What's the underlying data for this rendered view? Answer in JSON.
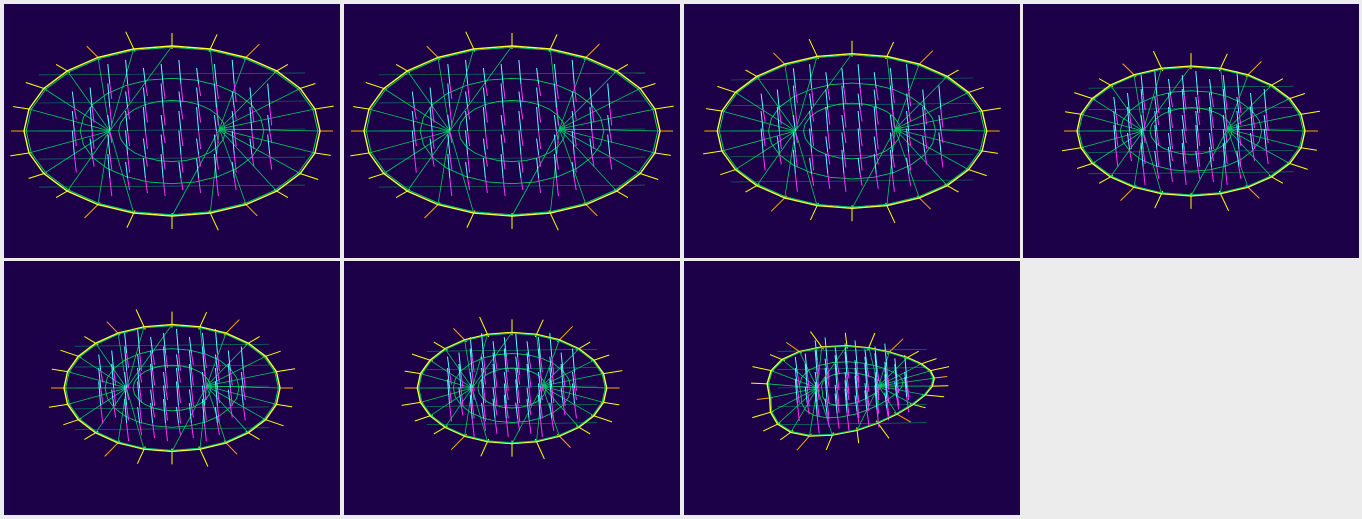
{
  "colors": {
    "page_background": "#ececec",
    "panel_background": "#1c0048",
    "outer_ring": "#ffff33",
    "mesh_lines": "#00cc66",
    "normals_cyan": "#55ffff",
    "normals_magenta": "#ff33ff",
    "normals_yellow": "#ffff00",
    "normals_orange": "#ffaa00"
  },
  "panels": [
    {
      "id": 1,
      "shape": "ellipse",
      "radius_x": 1.0,
      "radius_y": 0.55,
      "tilt": 0.0,
      "taper": 0.0
    },
    {
      "id": 2,
      "shape": "ellipse",
      "radius_x": 1.0,
      "radius_y": 0.55,
      "tilt": 0.0,
      "taper": 0.0
    },
    {
      "id": 3,
      "shape": "ellipse",
      "radius_x": 0.91,
      "radius_y": 0.5,
      "tilt": 0.0,
      "taper": 0.0
    },
    {
      "id": 4,
      "shape": "ellipse",
      "radius_x": 0.77,
      "radius_y": 0.42,
      "tilt": 0.0,
      "taper": 0.0
    },
    {
      "id": 5,
      "shape": "ellipse",
      "radius_x": 0.73,
      "radius_y": 0.41,
      "tilt": 0.0,
      "taper": 0.0
    },
    {
      "id": 6,
      "shape": "ellipse",
      "radius_x": 0.64,
      "radius_y": 0.36,
      "tilt": 0.0,
      "taper": 0.0
    },
    {
      "id": 7,
      "shape": "tapered",
      "radius_x": 0.56,
      "radius_y": 0.36,
      "tilt": -0.12,
      "taper": 0.55
    }
  ]
}
